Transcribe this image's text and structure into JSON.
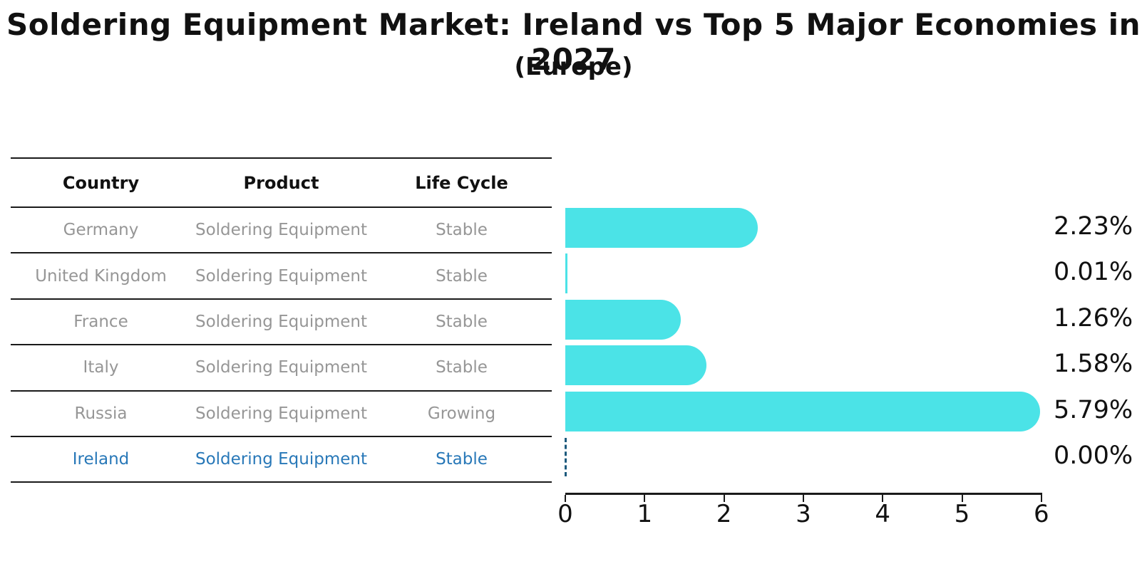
{
  "title": "Soldering Equipment Market: Ireland vs Top 5 Major Economies in 2027",
  "subtitle": "(Europe)",
  "table": {
    "headers": [
      "Country",
      "Product",
      "Life Cycle"
    ],
    "rows": [
      {
        "country": "Germany",
        "product": "Soldering Equipment",
        "life_cycle": "Stable",
        "highlight": false
      },
      {
        "country": "United Kingdom",
        "product": "Soldering Equipment",
        "life_cycle": "Stable",
        "highlight": false
      },
      {
        "country": "France",
        "product": "Soldering Equipment",
        "life_cycle": "Stable",
        "highlight": false
      },
      {
        "country": "Italy",
        "product": "Soldering Equipment",
        "life_cycle": "Stable",
        "highlight": false
      },
      {
        "country": "Russia",
        "product": "Soldering Equipment",
        "life_cycle": "Growing",
        "highlight": false
      },
      {
        "country": "Ireland",
        "product": "Soldering Equipment",
        "life_cycle": "Stable",
        "highlight": true
      }
    ]
  },
  "chart_data": {
    "type": "bar",
    "orientation": "horizontal",
    "title": "Soldering Equipment Market: Ireland vs Top 5 Major Economies in 2027",
    "subtitle": "(Europe)",
    "categories": [
      "Germany",
      "United Kingdom",
      "France",
      "Italy",
      "Russia",
      "Ireland"
    ],
    "values": [
      2.23,
      0.01,
      1.26,
      1.58,
      5.79,
      0.0
    ],
    "value_labels": [
      "2.23%",
      "0.01%",
      "1.26%",
      "1.58%",
      "5.79%",
      "0.00%"
    ],
    "xlabel": "",
    "ylabel": "",
    "xlim": [
      0,
      6
    ],
    "x_ticks": [
      "0",
      "1",
      "2",
      "3",
      "4",
      "5",
      "6"
    ],
    "grid": false,
    "legend": false,
    "bar_color": "#4BE3E7",
    "highlight_marker_color": "#1D5A7D",
    "highlight_text_color": "#2878B8"
  },
  "colors": {
    "background": "#FFFFFF",
    "text": "#111111",
    "muted_text": "#969696",
    "line": "#1A1A1A"
  }
}
